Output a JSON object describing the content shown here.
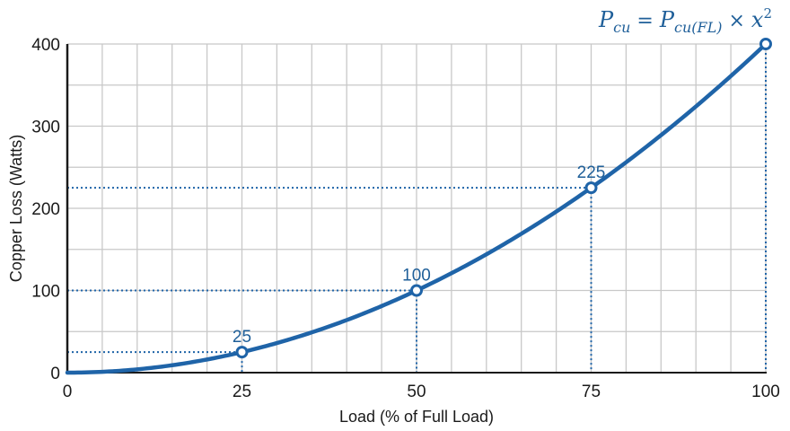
{
  "chart_data": {
    "type": "line",
    "title": "",
    "formula": "P_cu = P_cu(FL) × x^2",
    "xlabel": "Load (% of Full Load)",
    "ylabel": "Copper Loss (Watts)",
    "xlim": [
      0,
      100
    ],
    "ylim": [
      0,
      400
    ],
    "x_ticks": [
      0,
      25,
      50,
      75,
      100
    ],
    "y_ticks": [
      0,
      100,
      200,
      300,
      400
    ],
    "grid": true,
    "grid_x_step": 5,
    "grid_y_step": 50,
    "series": [
      {
        "name": "Copper Loss",
        "function": "400*(x/100)^2",
        "x": [
          0,
          5,
          10,
          15,
          20,
          25,
          30,
          35,
          40,
          45,
          50,
          55,
          60,
          65,
          70,
          75,
          80,
          85,
          90,
          95,
          100
        ],
        "values": [
          0,
          1,
          4,
          9,
          16,
          25,
          36,
          49,
          64,
          81,
          100,
          121,
          144,
          169,
          196,
          225,
          256,
          289,
          324,
          361,
          400
        ]
      }
    ],
    "marked_points": [
      {
        "x": 25,
        "y": 25,
        "label": "25"
      },
      {
        "x": 50,
        "y": 100,
        "label": "100"
      },
      {
        "x": 75,
        "y": 225,
        "label": "225"
      },
      {
        "x": 100,
        "y": 400,
        "label": ""
      }
    ],
    "colors": {
      "line": "#1f64a8",
      "label": "#1f5f99",
      "grid": "#c8c8c8",
      "axis": "#1a1a1a"
    }
  },
  "labels": {
    "xlabel": "Load (% of Full Load)",
    "ylabel": "Copper Loss (Watts)",
    "formula_P": "P",
    "formula_sub_left": "cu",
    "formula_eq": " = ",
    "formula_sub_right": "cu(FL)",
    "formula_times": " × ",
    "formula_x": "x",
    "formula_sup": "2"
  }
}
